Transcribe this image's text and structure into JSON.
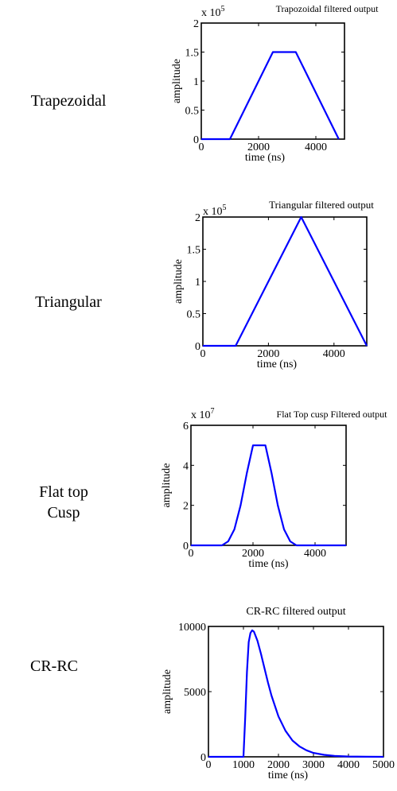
{
  "row_labels": [
    "Trapezoidal",
    "Triangular",
    "Flat top Cusp",
    "CR-RC"
  ],
  "line_color": "#0000ff",
  "chart_data": [
    {
      "type": "line",
      "title": "Trapozoidal filtered output",
      "xlabel": "time (ns)",
      "ylabel": "amplitude",
      "exponent_label": "x 10",
      "exponent_power": "5",
      "xlim": [
        0,
        5000
      ],
      "ylim": [
        0,
        200000
      ],
      "xticks": [
        0,
        2000,
        4000
      ],
      "xtick_labels": [
        "0",
        "2000",
        "4000"
      ],
      "yticks": [
        0,
        50000,
        100000,
        150000,
        200000
      ],
      "ytick_labels": [
        "0",
        "0.5",
        "1",
        "1.5",
        "2"
      ],
      "series": [
        {
          "x": [
            0,
            1000,
            2500,
            3300,
            4800
          ],
          "y": [
            0,
            0,
            150000,
            150000,
            0
          ]
        }
      ]
    },
    {
      "type": "line",
      "title": "Triangular filtered output",
      "xlabel": "time (ns)",
      "ylabel": "amplitude",
      "exponent_label": "x 10",
      "exponent_power": "5",
      "xlim": [
        0,
        5000
      ],
      "ylim": [
        0,
        200000
      ],
      "xticks": [
        0,
        2000,
        4000
      ],
      "xtick_labels": [
        "0",
        "2000",
        "4000"
      ],
      "yticks": [
        0,
        50000,
        100000,
        150000,
        200000
      ],
      "ytick_labels": [
        "0",
        "0.5",
        "1",
        "1.5",
        "2"
      ],
      "series": [
        {
          "x": [
            0,
            1000,
            3000,
            5000
          ],
          "y": [
            0,
            0,
            200000,
            0
          ]
        }
      ]
    },
    {
      "type": "line",
      "title": "Flat Top cusp Filtered output",
      "xlabel": "time (ns)",
      "ylabel": "amplitude",
      "exponent_label": "x 10",
      "exponent_power": "7",
      "xlim": [
        0,
        5000
      ],
      "ylim": [
        0,
        60000000
      ],
      "xticks": [
        0,
        2000,
        4000
      ],
      "xtick_labels": [
        "0",
        "2000",
        "4000"
      ],
      "yticks": [
        0,
        20000000,
        40000000,
        60000000
      ],
      "ytick_labels": [
        "0",
        "2",
        "4",
        "6"
      ],
      "series": [
        {
          "x": [
            0,
            1000,
            1200,
            1400,
            1600,
            1800,
            2000,
            2400,
            2600,
            2800,
            3000,
            3200,
            3400,
            5000
          ],
          "y": [
            0,
            0,
            2000000,
            8000000,
            20000000,
            36000000,
            50000000,
            50000000,
            36000000,
            20000000,
            8000000,
            2000000,
            0,
            0
          ]
        }
      ]
    },
    {
      "type": "line",
      "title": "CR-RC filtered output",
      "xlabel": "time (ns)",
      "ylabel": "amplitude",
      "exponent_label": "",
      "exponent_power": "",
      "xlim": [
        0,
        5000
      ],
      "ylim": [
        0,
        10000
      ],
      "xticks": [
        0,
        1000,
        2000,
        3000,
        4000,
        5000
      ],
      "xtick_labels": [
        "0",
        "1000",
        "2000",
        "3000",
        "4000",
        "5000"
      ],
      "yticks": [
        0,
        5000,
        10000
      ],
      "ytick_labels": [
        "0",
        "5000",
        "10000"
      ],
      "series": [
        {
          "x": [
            0,
            1000,
            1050,
            1100,
            1150,
            1200,
            1250,
            1300,
            1400,
            1500,
            1600,
            1700,
            1800,
            2000,
            2200,
            2400,
            2600,
            2800,
            3000,
            3300,
            3600,
            4000,
            4500,
            5000
          ],
          "y": [
            0,
            0,
            3000,
            6500,
            8800,
            9500,
            9700,
            9600,
            8900,
            7900,
            6800,
            5700,
            4700,
            3100,
            2000,
            1250,
            800,
            500,
            300,
            150,
            70,
            25,
            5,
            0
          ]
        }
      ]
    }
  ]
}
